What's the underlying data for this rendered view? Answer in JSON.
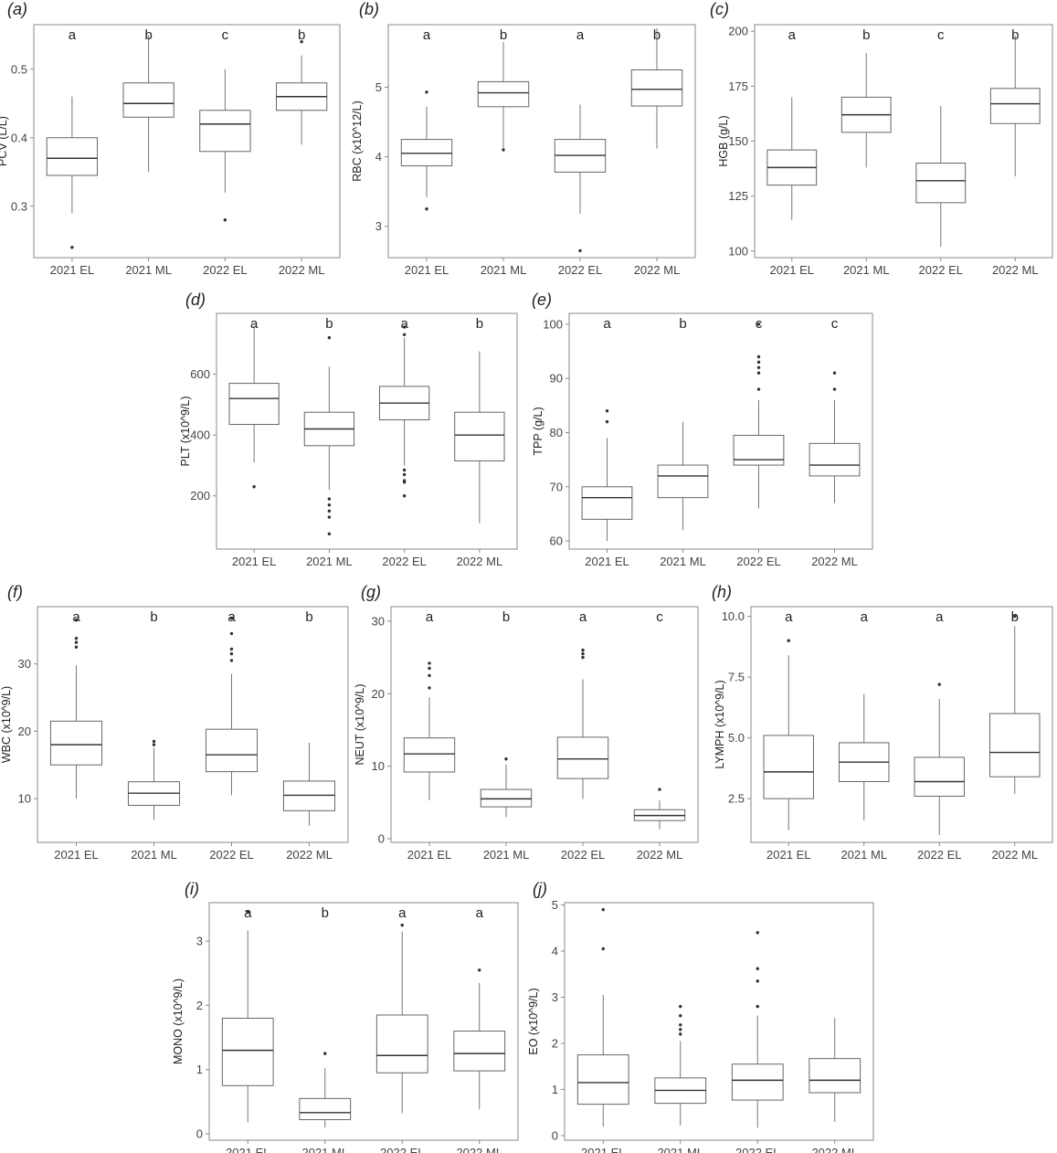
{
  "categories": [
    "2021 EL",
    "2021 ML",
    "2022 EL",
    "2022 ML"
  ],
  "colors": {
    "box_stroke": "#666666",
    "median": "#333333",
    "whisker": "#777777",
    "frame": "#888888",
    "outlier": "#333333",
    "text": "#222222",
    "tick_text": "#444444"
  },
  "chart_data": [
    {
      "panel": "(a)",
      "type": "boxplot",
      "ylabel": "PCV (L/L)",
      "ylim": [
        0.225,
        0.565
      ],
      "yticks": [
        0.3,
        0.4,
        0.5
      ],
      "ytick_labels": [
        "0.3",
        "0.4",
        "0.5"
      ],
      "letters": [
        "a",
        "b",
        "c",
        "b"
      ],
      "boxes": [
        {
          "q1": 0.345,
          "median": 0.37,
          "q3": 0.4,
          "wlo": 0.29,
          "whi": 0.46,
          "outliers": [
            0.24
          ]
        },
        {
          "q1": 0.43,
          "median": 0.45,
          "q3": 0.48,
          "wlo": 0.35,
          "whi": 0.55,
          "outliers": []
        },
        {
          "q1": 0.38,
          "median": 0.42,
          "q3": 0.44,
          "wlo": 0.32,
          "whi": 0.5,
          "outliers": [
            0.28
          ]
        },
        {
          "q1": 0.44,
          "median": 0.46,
          "q3": 0.48,
          "wlo": 0.39,
          "whi": 0.52,
          "outliers": [
            0.54
          ]
        }
      ]
    },
    {
      "panel": "(b)",
      "type": "boxplot",
      "ylabel": "RBC (x10^12/L)",
      "ylim": [
        2.55,
        5.9
      ],
      "yticks": [
        3,
        4,
        5
      ],
      "ytick_labels": [
        "3",
        "4",
        "5"
      ],
      "letters": [
        "a",
        "b",
        "a",
        "b"
      ],
      "boxes": [
        {
          "q1": 3.87,
          "median": 4.05,
          "q3": 4.25,
          "wlo": 3.42,
          "whi": 4.72,
          "outliers": [
            3.25,
            4.93
          ]
        },
        {
          "q1": 4.72,
          "median": 4.92,
          "q3": 5.08,
          "wlo": 4.12,
          "whi": 5.65,
          "outliers": [
            4.1
          ]
        },
        {
          "q1": 3.78,
          "median": 4.02,
          "q3": 4.25,
          "wlo": 3.18,
          "whi": 4.75,
          "outliers": [
            2.65
          ]
        },
        {
          "q1": 4.73,
          "median": 4.97,
          "q3": 5.25,
          "wlo": 4.12,
          "whi": 5.85,
          "outliers": []
        }
      ]
    },
    {
      "panel": "(c)",
      "type": "boxplot",
      "ylabel": "HGB (g/L)",
      "ylim": [
        97,
        203
      ],
      "yticks": [
        100,
        125,
        150,
        175,
        200
      ],
      "ytick_labels": [
        "100",
        "125",
        "150",
        "175",
        "200"
      ],
      "letters": [
        "a",
        "b",
        "c",
        "b"
      ],
      "boxes": [
        {
          "q1": 130,
          "median": 138,
          "q3": 146,
          "wlo": 114,
          "whi": 170,
          "outliers": []
        },
        {
          "q1": 154,
          "median": 162,
          "q3": 170,
          "wlo": 138,
          "whi": 190,
          "outliers": []
        },
        {
          "q1": 122,
          "median": 132,
          "q3": 140,
          "wlo": 102,
          "whi": 166,
          "outliers": []
        },
        {
          "q1": 158,
          "median": 167,
          "q3": 174,
          "wlo": 134,
          "whi": 198,
          "outliers": []
        }
      ]
    },
    {
      "panel": "(d)",
      "type": "boxplot",
      "ylabel": "PLT (x10^9/L)",
      "ylim": [
        25,
        800
      ],
      "yticks": [
        200,
        400,
        600
      ],
      "ytick_labels": [
        "200",
        "400",
        "600"
      ],
      "letters": [
        "a",
        "b",
        "a",
        "b"
      ],
      "boxes": [
        {
          "q1": 435,
          "median": 520,
          "q3": 570,
          "wlo": 310,
          "whi": 760,
          "outliers": [
            230
          ]
        },
        {
          "q1": 365,
          "median": 420,
          "q3": 475,
          "wlo": 220,
          "whi": 625,
          "outliers": [
            720,
            190,
            170,
            150,
            130,
            75
          ]
        },
        {
          "q1": 450,
          "median": 505,
          "q3": 560,
          "wlo": 300,
          "whi": 720,
          "outliers": [
            755,
            730,
            285,
            270,
            250,
            245,
            200
          ]
        },
        {
          "q1": 315,
          "median": 400,
          "q3": 475,
          "wlo": 110,
          "whi": 675,
          "outliers": []
        }
      ]
    },
    {
      "panel": "(e)",
      "type": "boxplot",
      "ylabel": "TPP (g/L)",
      "ylim": [
        58.5,
        102
      ],
      "yticks": [
        60,
        70,
        80,
        90,
        100
      ],
      "ytick_labels": [
        "60",
        "70",
        "80",
        "90",
        "100"
      ],
      "letters": [
        "a",
        "b",
        "c",
        "c"
      ],
      "boxes": [
        {
          "q1": 64,
          "median": 68,
          "q3": 70,
          "wlo": 60,
          "whi": 79,
          "outliers": [
            82,
            84
          ]
        },
        {
          "q1": 68,
          "median": 72,
          "q3": 74,
          "wlo": 62,
          "whi": 82,
          "outliers": []
        },
        {
          "q1": 74,
          "median": 75,
          "q3": 79.5,
          "wlo": 66,
          "whi": 86,
          "outliers": [
            88,
            91,
            92,
            93,
            94,
            100
          ]
        },
        {
          "q1": 72,
          "median": 74,
          "q3": 78,
          "wlo": 67,
          "whi": 86,
          "outliers": [
            88,
            91
          ]
        }
      ]
    },
    {
      "panel": "(f)",
      "type": "boxplot",
      "ylabel": "WBC (x10^9/L)",
      "ylim": [
        3.5,
        38.5
      ],
      "yticks": [
        10,
        20,
        30
      ],
      "ytick_labels": [
        "10",
        "20",
        "30"
      ],
      "letters": [
        "a",
        "b",
        "a",
        "b"
      ],
      "boxes": [
        {
          "q1": 15,
          "median": 18,
          "q3": 21.5,
          "wlo": 10,
          "whi": 29.8,
          "outliers": [
            32.5,
            33.2,
            33.8,
            36.5
          ]
        },
        {
          "q1": 9,
          "median": 10.8,
          "q3": 12.5,
          "wlo": 6.8,
          "whi": 17.5,
          "outliers": [
            18,
            18.5
          ]
        },
        {
          "q1": 14,
          "median": 16.5,
          "q3": 20.3,
          "wlo": 10.5,
          "whi": 28.5,
          "outliers": [
            30.5,
            31.5,
            32.2,
            34.5,
            36.8
          ]
        },
        {
          "q1": 8.2,
          "median": 10.5,
          "q3": 12.6,
          "wlo": 6,
          "whi": 18.3,
          "outliers": []
        }
      ]
    },
    {
      "panel": "(g)",
      "type": "boxplot",
      "ylabel": "NEUT (x10^9/L)",
      "ylim": [
        -0.5,
        32
      ],
      "yticks": [
        0,
        10,
        20,
        30
      ],
      "ytick_labels": [
        "0",
        "10",
        "20",
        "30"
      ],
      "letters": [
        "a",
        "b",
        "a",
        "c"
      ],
      "boxes": [
        {
          "q1": 9.2,
          "median": 11.7,
          "q3": 13.9,
          "wlo": 5.3,
          "whi": 19.5,
          "outliers": [
            20.8,
            22.5,
            23.5,
            24.2
          ]
        },
        {
          "q1": 4.4,
          "median": 5.5,
          "q3": 6.8,
          "wlo": 3,
          "whi": 10.2,
          "outliers": [
            11
          ]
        },
        {
          "q1": 8.3,
          "median": 11,
          "q3": 14,
          "wlo": 5.5,
          "whi": 22,
          "outliers": [
            25,
            25.5,
            26
          ]
        },
        {
          "q1": 2.5,
          "median": 3.2,
          "q3": 4,
          "wlo": 1.3,
          "whi": 5.3,
          "outliers": [
            6.8
          ]
        }
      ]
    },
    {
      "panel": "(h)",
      "type": "boxplot",
      "ylabel": "LYMPH (x10^9/L)",
      "ylim": [
        0.7,
        10.4
      ],
      "yticks": [
        2.5,
        5,
        7.5,
        10
      ],
      "ytick_labels": [
        "2.5",
        "5.0",
        "7.5",
        "10.0"
      ],
      "letters": [
        "a",
        "a",
        "a",
        "b"
      ],
      "boxes": [
        {
          "q1": 2.5,
          "median": 3.6,
          "q3": 5.1,
          "wlo": 1.2,
          "whi": 8.4,
          "outliers": [
            9
          ]
        },
        {
          "q1": 3.2,
          "median": 4,
          "q3": 4.8,
          "wlo": 1.6,
          "whi": 6.8,
          "outliers": []
        },
        {
          "q1": 2.6,
          "median": 3.2,
          "q3": 4.2,
          "wlo": 1,
          "whi": 6.6,
          "outliers": [
            7.2
          ]
        },
        {
          "q1": 3.4,
          "median": 4.4,
          "q3": 6,
          "wlo": 2.7,
          "whi": 9.6,
          "outliers": [
            10
          ]
        }
      ]
    },
    {
      "panel": "(i)",
      "type": "boxplot",
      "ylabel": "MONO (x10^9/L)",
      "ylim": [
        -0.1,
        3.6
      ],
      "yticks": [
        0,
        1,
        2,
        3
      ],
      "ytick_labels": [
        "0",
        "1",
        "2",
        "3"
      ],
      "letters": [
        "a",
        "b",
        "a",
        "a"
      ],
      "boxes": [
        {
          "q1": 0.75,
          "median": 1.3,
          "q3": 1.8,
          "wlo": 0.18,
          "whi": 3.17,
          "outliers": [
            3.45
          ]
        },
        {
          "q1": 0.22,
          "median": 0.33,
          "q3": 0.55,
          "wlo": 0.1,
          "whi": 1.02,
          "outliers": [
            1.25
          ]
        },
        {
          "q1": 0.95,
          "median": 1.22,
          "q3": 1.85,
          "wlo": 0.32,
          "whi": 3.15,
          "outliers": [
            3.25
          ]
        },
        {
          "q1": 0.98,
          "median": 1.25,
          "q3": 1.6,
          "wlo": 0.38,
          "whi": 2.35,
          "outliers": [
            2.55
          ]
        }
      ]
    },
    {
      "panel": "(j)",
      "type": "boxplot",
      "ylabel": "EO (x10^9/L)",
      "ylim": [
        -0.1,
        5.05
      ],
      "yticks": [
        0,
        1,
        2,
        3,
        4,
        5
      ],
      "ytick_labels": [
        "0",
        "1",
        "2",
        "3",
        "4",
        "5"
      ],
      "letters": [],
      "boxes": [
        {
          "q1": 0.68,
          "median": 1.15,
          "q3": 1.75,
          "wlo": 0.2,
          "whi": 3.05,
          "outliers": [
            4.05,
            4.9
          ]
        },
        {
          "q1": 0.7,
          "median": 0.98,
          "q3": 1.25,
          "wlo": 0.22,
          "whi": 2.05,
          "outliers": [
            2.2,
            2.3,
            2.4,
            2.6,
            2.8
          ]
        },
        {
          "q1": 0.77,
          "median": 1.2,
          "q3": 1.55,
          "wlo": 0.17,
          "whi": 2.6,
          "outliers": [
            2.8,
            3.35,
            3.62,
            4.4
          ]
        },
        {
          "q1": 0.93,
          "median": 1.2,
          "q3": 1.67,
          "wlo": 0.3,
          "whi": 2.55,
          "outliers": []
        }
      ]
    }
  ]
}
